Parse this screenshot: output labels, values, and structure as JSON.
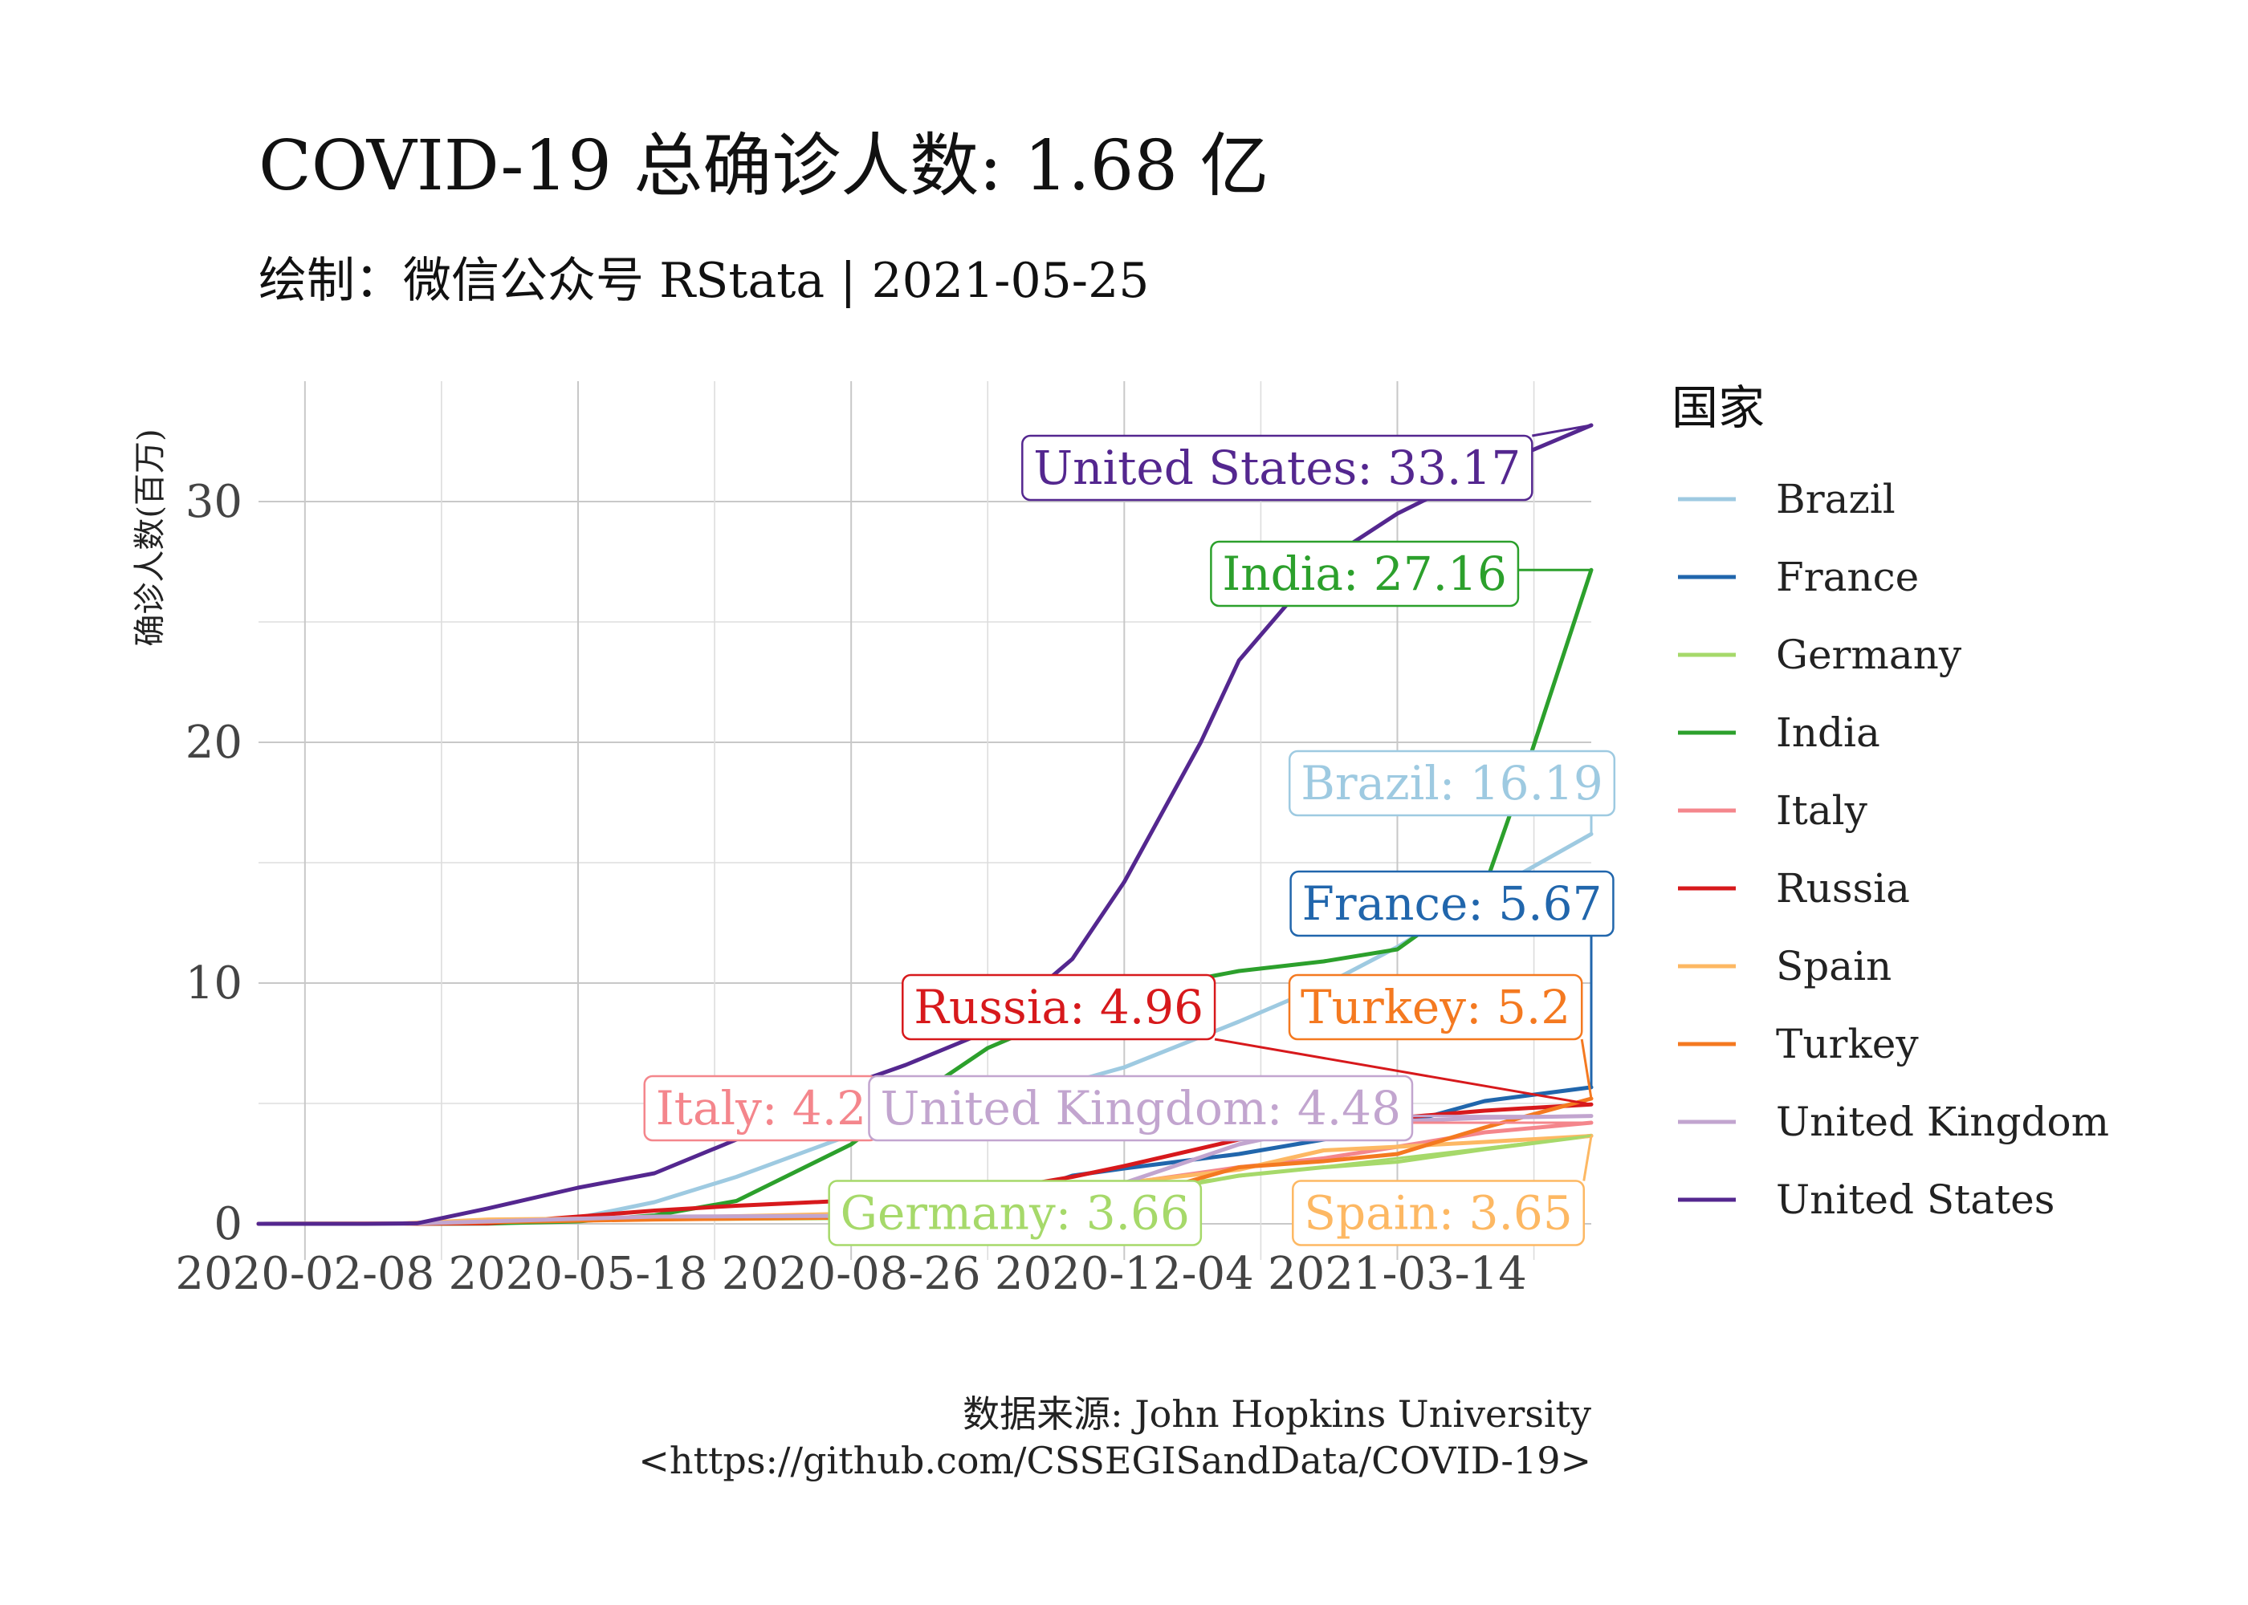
{
  "chart_data": {
    "type": "line",
    "title": "COVID-19 总确诊人数: 1.68 亿",
    "subtitle": "绘制：微信公众号 RStata | 2021-05-25",
    "ylabel": "确诊人数(百万)",
    "xlabel": "",
    "caption_line1": "数据来源: John Hopkins University",
    "caption_line2": "<https://github.com/CSSEGISandData/COVID-19>",
    "legend_title": "国家",
    "legend_position": "right",
    "grid": true,
    "xlim": [
      "2020-01-22",
      "2021-05-24"
    ],
    "ylim": [
      -1.5,
      35
    ],
    "yticks": [
      0,
      10,
      20,
      30
    ],
    "xticks": [
      "2020-02-08",
      "2020-05-18",
      "2020-08-26",
      "2020-12-04",
      "2021-03-14"
    ],
    "series": [
      {
        "name": "Brazil",
        "color": "#9ecae1",
        "points": [
          [
            "2020-01-22",
            0
          ],
          [
            "2020-03-15",
            0.0
          ],
          [
            "2020-04-15",
            0.03
          ],
          [
            "2020-05-18",
            0.25
          ],
          [
            "2020-06-15",
            0.9
          ],
          [
            "2020-07-15",
            1.95
          ],
          [
            "2020-08-26",
            3.7
          ],
          [
            "2020-09-15",
            4.4
          ],
          [
            "2020-10-15",
            5.2
          ],
          [
            "2020-11-15",
            5.9
          ],
          [
            "2020-12-04",
            6.5
          ],
          [
            "2021-01-15",
            8.4
          ],
          [
            "2021-02-15",
            9.9
          ],
          [
            "2021-03-14",
            11.5
          ],
          [
            "2021-04-15",
            13.7
          ],
          [
            "2021-05-24",
            16.19
          ]
        ],
        "label": "Brazil: 16.19"
      },
      {
        "name": "France",
        "color": "#2166ac",
        "points": [
          [
            "2020-01-22",
            0
          ],
          [
            "2020-03-15",
            0.01
          ],
          [
            "2020-04-15",
            0.13
          ],
          [
            "2020-06-15",
            0.19
          ],
          [
            "2020-08-26",
            0.28
          ],
          [
            "2020-10-15",
            0.8
          ],
          [
            "2020-11-15",
            2.0
          ],
          [
            "2020-12-04",
            2.3
          ],
          [
            "2021-01-15",
            2.9
          ],
          [
            "2021-02-15",
            3.5
          ],
          [
            "2021-03-14",
            4.1
          ],
          [
            "2021-04-15",
            5.1
          ],
          [
            "2021-05-24",
            5.67
          ]
        ],
        "label": "France: 5.67"
      },
      {
        "name": "Germany",
        "color": "#a6d96a",
        "points": [
          [
            "2020-01-22",
            0
          ],
          [
            "2020-03-15",
            0.01
          ],
          [
            "2020-04-15",
            0.13
          ],
          [
            "2020-06-15",
            0.19
          ],
          [
            "2020-08-26",
            0.24
          ],
          [
            "2020-10-15",
            0.35
          ],
          [
            "2020-11-15",
            0.8
          ],
          [
            "2020-12-04",
            1.15
          ],
          [
            "2021-01-15",
            2.0
          ],
          [
            "2021-02-15",
            2.35
          ],
          [
            "2021-03-14",
            2.58
          ],
          [
            "2021-04-15",
            3.1
          ],
          [
            "2021-05-24",
            3.66
          ]
        ],
        "label": "Germany: 3.66"
      },
      {
        "name": "India",
        "color": "#2ca02c",
        "points": [
          [
            "2020-01-22",
            0
          ],
          [
            "2020-03-15",
            0.0
          ],
          [
            "2020-04-15",
            0.01
          ],
          [
            "2020-05-18",
            0.1
          ],
          [
            "2020-06-15",
            0.35
          ],
          [
            "2020-07-15",
            0.95
          ],
          [
            "2020-08-26",
            3.3
          ],
          [
            "2020-09-15",
            5.0
          ],
          [
            "2020-10-15",
            7.3
          ],
          [
            "2020-11-15",
            8.8
          ],
          [
            "2020-12-04",
            9.6
          ],
          [
            "2021-01-15",
            10.5
          ],
          [
            "2021-02-15",
            10.9
          ],
          [
            "2021-03-14",
            11.4
          ],
          [
            "2021-04-15",
            14.0
          ],
          [
            "2021-05-01",
            19.2
          ],
          [
            "2021-05-24",
            27.16
          ]
        ],
        "label": "India: 27.16"
      },
      {
        "name": "Italy",
        "color": "#f4868c",
        "points": [
          [
            "2020-01-22",
            0
          ],
          [
            "2020-03-15",
            0.02
          ],
          [
            "2020-04-15",
            0.16
          ],
          [
            "2020-06-15",
            0.24
          ],
          [
            "2020-08-26",
            0.26
          ],
          [
            "2020-10-15",
            0.38
          ],
          [
            "2020-11-15",
            1.15
          ],
          [
            "2020-12-04",
            1.67
          ],
          [
            "2021-01-15",
            2.35
          ],
          [
            "2021-02-15",
            2.72
          ],
          [
            "2021-03-14",
            3.2
          ],
          [
            "2021-04-15",
            3.8
          ],
          [
            "2021-05-24",
            4.2
          ]
        ],
        "label": "Italy: 4.2"
      },
      {
        "name": "Russia",
        "color": "#d7191c",
        "points": [
          [
            "2020-01-22",
            0
          ],
          [
            "2020-03-15",
            0.0
          ],
          [
            "2020-04-15",
            0.02
          ],
          [
            "2020-05-18",
            0.3
          ],
          [
            "2020-06-15",
            0.55
          ],
          [
            "2020-07-15",
            0.75
          ],
          [
            "2020-08-26",
            0.97
          ],
          [
            "2020-10-15",
            1.35
          ],
          [
            "2020-11-15",
            1.95
          ],
          [
            "2020-12-04",
            2.4
          ],
          [
            "2021-01-15",
            3.5
          ],
          [
            "2021-02-15",
            4.1
          ],
          [
            "2021-03-14",
            4.4
          ],
          [
            "2021-04-15",
            4.7
          ],
          [
            "2021-05-24",
            4.96
          ]
        ],
        "label": "Russia: 4.96"
      },
      {
        "name": "Spain",
        "color": "#fdb863",
        "points": [
          [
            "2020-01-22",
            0
          ],
          [
            "2020-03-15",
            0.01
          ],
          [
            "2020-04-15",
            0.18
          ],
          [
            "2020-06-15",
            0.24
          ],
          [
            "2020-08-26",
            0.42
          ],
          [
            "2020-10-15",
            0.92
          ],
          [
            "2020-11-15",
            1.45
          ],
          [
            "2020-12-04",
            1.7
          ],
          [
            "2021-01-15",
            2.25
          ],
          [
            "2021-02-15",
            3.05
          ],
          [
            "2021-03-14",
            3.2
          ],
          [
            "2021-04-15",
            3.4
          ],
          [
            "2021-05-24",
            3.65
          ]
        ],
        "label": "Spain: 3.65"
      },
      {
        "name": "Turkey",
        "color": "#f47920",
        "points": [
          [
            "2020-01-22",
            0
          ],
          [
            "2020-03-15",
            0.0
          ],
          [
            "2020-04-15",
            0.07
          ],
          [
            "2020-06-15",
            0.18
          ],
          [
            "2020-08-26",
            0.26
          ],
          [
            "2020-10-15",
            0.34
          ],
          [
            "2020-11-15",
            0.42
          ],
          [
            "2020-12-04",
            1.0
          ],
          [
            "2021-01-15",
            2.35
          ],
          [
            "2021-02-15",
            2.6
          ],
          [
            "2021-03-14",
            2.9
          ],
          [
            "2021-04-15",
            4.0
          ],
          [
            "2021-05-24",
            5.2
          ]
        ],
        "label": "Turkey: 5.2"
      },
      {
        "name": "United Kingdom",
        "color": "#c2a5cf",
        "points": [
          [
            "2020-01-22",
            0
          ],
          [
            "2020-03-15",
            0.0
          ],
          [
            "2020-04-15",
            0.1
          ],
          [
            "2020-06-15",
            0.3
          ],
          [
            "2020-08-26",
            0.33
          ],
          [
            "2020-10-15",
            0.68
          ],
          [
            "2020-11-15",
            1.4
          ],
          [
            "2020-12-04",
            1.7
          ],
          [
            "2021-01-15",
            3.3
          ],
          [
            "2021-02-15",
            4.05
          ],
          [
            "2021-03-14",
            4.26
          ],
          [
            "2021-04-15",
            4.4
          ],
          [
            "2021-05-24",
            4.48
          ]
        ],
        "label": "United Kingdom: 4.48"
      },
      {
        "name": "United States",
        "color": "#54278f",
        "points": [
          [
            "2020-01-22",
            0
          ],
          [
            "2020-03-01",
            0.0
          ],
          [
            "2020-03-20",
            0.02
          ],
          [
            "2020-04-15",
            0.64
          ],
          [
            "2020-05-18",
            1.5
          ],
          [
            "2020-06-15",
            2.1
          ],
          [
            "2020-07-15",
            3.5
          ],
          [
            "2020-08-26",
            5.8
          ],
          [
            "2020-09-15",
            6.6
          ],
          [
            "2020-10-15",
            8.0
          ],
          [
            "2020-11-15",
            11.0
          ],
          [
            "2020-12-04",
            14.2
          ],
          [
            "2021-01-01",
            20.0
          ],
          [
            "2021-01-15",
            23.4
          ],
          [
            "2021-02-15",
            27.5
          ],
          [
            "2021-03-14",
            29.5
          ],
          [
            "2021-04-15",
            31.3
          ],
          [
            "2021-05-24",
            33.17
          ]
        ],
        "label": "United States: 33.17"
      }
    ],
    "end_labels": [
      {
        "series": "United States",
        "x": "2021-01-29",
        "y": 31.4,
        "text": "United States: 33.17"
      },
      {
        "series": "India",
        "x": "2021-03-02",
        "y": 27.0,
        "text": "India: 27.16"
      },
      {
        "series": "Brazil",
        "x": "2021-04-03",
        "y": 18.3,
        "text": "Brazil: 16.19"
      },
      {
        "series": "France",
        "x": "2021-04-03",
        "y": 13.3,
        "text": "France: 5.67"
      },
      {
        "series": "Russia",
        "x": "2020-11-10",
        "y": 9.0,
        "text": "Russia: 4.96"
      },
      {
        "series": "Turkey",
        "x": "2021-03-28",
        "y": 9.0,
        "text": "Turkey: 5.2"
      },
      {
        "series": "Italy",
        "x": "2020-07-24",
        "y": 4.8,
        "text": "Italy: 4.2"
      },
      {
        "series": "United Kingdom",
        "x": "2020-12-10",
        "y": 4.8,
        "text": "United Kingdom: 4.48"
      },
      {
        "series": "Germany",
        "x": "2020-10-25",
        "y": 0.45,
        "text": "Germany: 3.66"
      },
      {
        "series": "Spain",
        "x": "2021-03-29",
        "y": 0.45,
        "text": "Spain: 3.65"
      }
    ]
  }
}
